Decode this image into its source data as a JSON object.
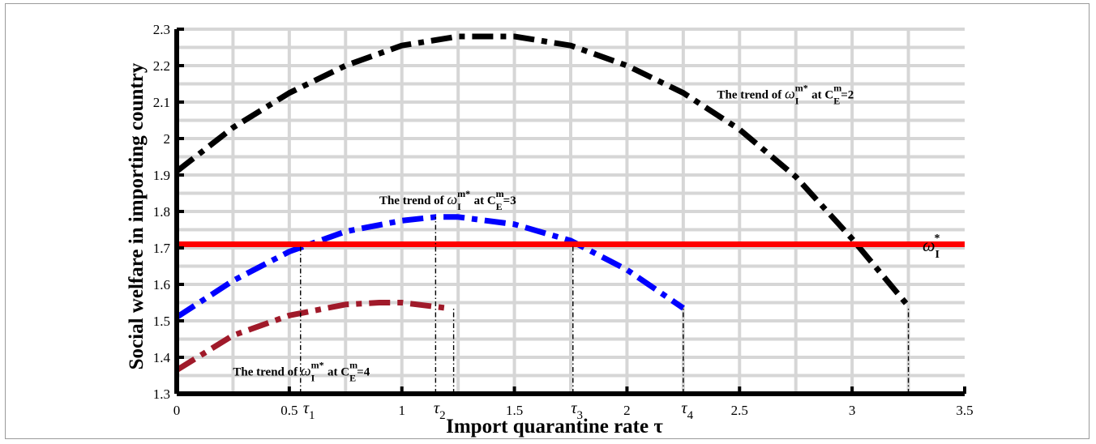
{
  "chart_data": {
    "type": "line",
    "title": "",
    "xlabel": "Import quarantine rate τ",
    "ylabel": "Social welfare in importing country",
    "xlim": [
      0,
      3.5
    ],
    "ylim": [
      1.3,
      2.3
    ],
    "grid": true,
    "x_ticks": [
      "0",
      "0.5",
      "1",
      "1.5",
      "2",
      "2.5",
      "3",
      "3.5"
    ],
    "y_ticks": [
      "1.3",
      "1.4",
      "1.5",
      "1.6",
      "1.7",
      "1.8",
      "1.9",
      "2",
      "2.1",
      "2.2",
      "2.3"
    ],
    "series": [
      {
        "name": "C_E^m=2",
        "color": "#000000",
        "style": "dash-dot",
        "x": [
          0,
          0.25,
          0.5,
          0.75,
          1.0,
          1.25,
          1.5,
          1.75,
          2.0,
          2.25,
          2.5,
          2.75,
          3.0,
          3.25
        ],
        "y": [
          1.91,
          2.03,
          2.125,
          2.2,
          2.255,
          2.28,
          2.28,
          2.255,
          2.2,
          2.125,
          2.025,
          1.895,
          1.725,
          1.54
        ]
      },
      {
        "name": "C_E^m=3",
        "color": "#0000ff",
        "style": "dash-dot",
        "x": [
          0,
          0.25,
          0.5,
          0.75,
          1.0,
          1.15,
          1.25,
          1.5,
          1.75,
          2.0,
          2.25
        ],
        "y": [
          1.51,
          1.61,
          1.69,
          1.745,
          1.775,
          1.785,
          1.785,
          1.765,
          1.72,
          1.64,
          1.535
        ]
      },
      {
        "name": "C_E^m=4",
        "color": "#a01a2a",
        "style": "dash-dot",
        "x": [
          0,
          0.25,
          0.5,
          0.75,
          0.9,
          1.0,
          1.2
        ],
        "y": [
          1.365,
          1.46,
          1.515,
          1.545,
          1.55,
          1.55,
          1.535
        ]
      },
      {
        "name": "ω_I^*",
        "color": "#ff0000",
        "style": "solid",
        "x": [
          0,
          3.5
        ],
        "y": [
          1.71,
          1.71
        ]
      }
    ],
    "vlines": [
      {
        "x": 0.55,
        "y0": 1.3,
        "y1": 1.71
      },
      {
        "x": 1.15,
        "y0": 1.3,
        "y1": 1.785
      },
      {
        "x": 1.23,
        "y0": 1.3,
        "y1": 1.535
      },
      {
        "x": 1.76,
        "y0": 1.3,
        "y1": 1.71
      },
      {
        "x": 2.25,
        "y0": 1.3,
        "y1": 1.535
      },
      {
        "x": 3.25,
        "y0": 1.3,
        "y1": 1.54
      }
    ],
    "tau_labels": [
      {
        "base": "τ",
        "sub": "1",
        "x": 0.59
      },
      {
        "base": "τ",
        "sub": "2",
        "x": 1.17
      },
      {
        "base": "τ",
        "sub": "3",
        "x": 1.78
      },
      {
        "base": "τ",
        "sub": "4",
        "x": 2.27
      }
    ],
    "annotations": [
      {
        "id": "c2",
        "text": "The trend of",
        "sym": "ω",
        "symsub": "I",
        "symsup": "m*",
        "mid": "at",
        "cvar": "C",
        "csub": "E",
        "csup": "m",
        "val": "=2",
        "x": 2.4,
        "y": 2.11
      },
      {
        "id": "c3",
        "text": "The trend of",
        "sym": "ω",
        "symsub": "I",
        "symsup": "m*",
        "mid": "at",
        "cvar": "C",
        "csub": "E",
        "csup": "m",
        "val": "=3",
        "x": 0.9,
        "y": 1.82
      },
      {
        "id": "c4",
        "text": "The trend of",
        "sym": "ω",
        "symsub": "I",
        "symsup": "m*",
        "mid": "at",
        "cvar": "C",
        "csub": "E",
        "csup": "m",
        "val": "=4",
        "x": 0.25,
        "y": 1.35
      }
    ],
    "omega_label": {
      "sym": "ω",
      "sub": "I",
      "sup": "*"
    }
  }
}
